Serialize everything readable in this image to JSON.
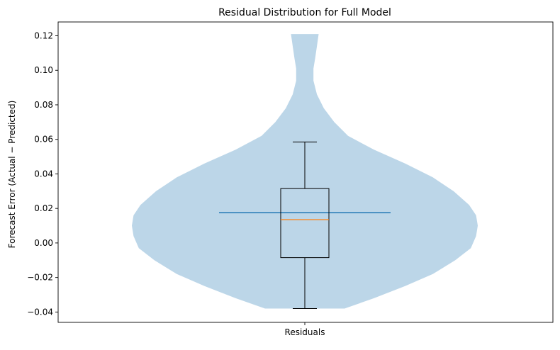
{
  "chart_data": {
    "type": "violin",
    "title": "Residual Distribution for Full Model",
    "xlabel": "",
    "ylabel": "Forecast Error (Actual − Predicted)",
    "categories": [
      "Residuals"
    ],
    "ylim": [
      -0.046,
      0.128
    ],
    "yticks": [
      -0.04,
      -0.02,
      0.0,
      0.02,
      0.04,
      0.06,
      0.08,
      0.1,
      0.12
    ],
    "ytick_labels": [
      "−0.04",
      "−0.02",
      "0.00",
      "0.02",
      "0.04",
      "0.06",
      "0.08",
      "0.10",
      "0.12"
    ],
    "violin": {
      "min": -0.038,
      "max": 0.121,
      "mean": 0.0175,
      "color": "#bcd6e8",
      "density_profile": [
        {
          "y": -0.038,
          "w": 0.23
        },
        {
          "y": -0.032,
          "w": 0.4
        },
        {
          "y": -0.025,
          "w": 0.58
        },
        {
          "y": -0.018,
          "w": 0.74
        },
        {
          "y": -0.01,
          "w": 0.87
        },
        {
          "y": -0.003,
          "w": 0.96
        },
        {
          "y": 0.004,
          "w": 0.99
        },
        {
          "y": 0.01,
          "w": 1.0
        },
        {
          "y": 0.016,
          "w": 0.99
        },
        {
          "y": 0.022,
          "w": 0.95
        },
        {
          "y": 0.03,
          "w": 0.86
        },
        {
          "y": 0.038,
          "w": 0.74
        },
        {
          "y": 0.046,
          "w": 0.58
        },
        {
          "y": 0.054,
          "w": 0.4
        },
        {
          "y": 0.062,
          "w": 0.25
        },
        {
          "y": 0.07,
          "w": 0.17
        },
        {
          "y": 0.078,
          "w": 0.11
        },
        {
          "y": 0.086,
          "w": 0.07
        },
        {
          "y": 0.094,
          "w": 0.05
        },
        {
          "y": 0.101,
          "w": 0.05
        },
        {
          "y": 0.107,
          "w": 0.06
        },
        {
          "y": 0.114,
          "w": 0.07
        },
        {
          "y": 0.121,
          "w": 0.08
        }
      ]
    },
    "boxplot": {
      "whisker_low": -0.038,
      "q1": -0.0085,
      "median": 0.0135,
      "q3": 0.0315,
      "whisker_high": 0.0585,
      "median_color": "#ff7f0e"
    },
    "mean_line_color": "#1f77b4",
    "grid": false,
    "legend": "none"
  }
}
